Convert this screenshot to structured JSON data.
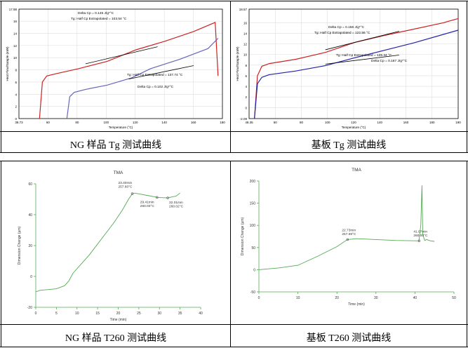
{
  "captions": {
    "tl": "NG 样品 Tg 测试曲线",
    "tr": "基板 Tg 测试曲线",
    "bl": "NG 样品 T260 测试曲线",
    "br": "基板 T260 测试曲线"
  },
  "chart_data": [
    {
      "type": "line",
      "panel": "top-left",
      "xlabel": "Temperature (°C)",
      "ylabel": "Heat Flow/Sample (mW)",
      "xlim": [
        38.73,
        180
      ],
      "ylim": [
        0,
        17.98
      ],
      "yticks": [
        0,
        2,
        4,
        6,
        8,
        10,
        12,
        14,
        16,
        17.98
      ],
      "xticks": [
        "38.73",
        "60",
        "80",
        "100",
        "120",
        "140",
        "160",
        "180"
      ],
      "series": [
        {
          "color": "#cc2222",
          "x": [
            53,
            55,
            58,
            65,
            80,
            100,
            120,
            140,
            160,
            175,
            177
          ],
          "y": [
            0,
            6,
            7.0,
            7.4,
            8.2,
            9.4,
            11.3,
            12.7,
            14.3,
            15.8,
            7
          ]
        },
        {
          "color": "#6666bb",
          "x": [
            72,
            74,
            77,
            85,
            100,
            117,
            130,
            150,
            170,
            177
          ],
          "y": [
            0,
            3.6,
            4.3,
            4.8,
            5.5,
            6.7,
            8.2,
            9.7,
            11.5,
            13.2
          ]
        }
      ],
      "annotations": [
        {
          "text": "Delta Cp = 0.145 J/g*°C"
        },
        {
          "text": "Tg: Half Cp Extrapolated = 103.54 °C"
        },
        {
          "text": "Tg: Half Cp Extrapolated = 137.74 °C"
        },
        {
          "text": "Delta Cp = 0.102 J/g*°C"
        }
      ]
    },
    {
      "type": "line",
      "panel": "top-right",
      "xlabel": "Temperature (°C)",
      "ylabel": "Heat Flow/Sample (mW)",
      "xlim": [
        48.35,
        190
      ],
      "ylim": [
        -2.08,
        18.57
      ],
      "yticks": [
        -2.08,
        0,
        2,
        4,
        6,
        8,
        10,
        12,
        14,
        16,
        18.57
      ],
      "xticks": [
        "48.35",
        "60",
        "80",
        "100",
        "120",
        "140",
        "160",
        "180",
        "190"
      ],
      "series": [
        {
          "color": "#cc2222",
          "x": [
            52,
            54,
            57,
            62,
            80,
            100,
            120,
            140,
            160,
            180,
            190
          ],
          "y": [
            -2,
            6,
            7.8,
            8.3,
            9.1,
            10.4,
            12.3,
            13.6,
            14.8,
            16.0,
            16.8
          ]
        },
        {
          "color": "#2222aa",
          "x": [
            52,
            54,
            57,
            62,
            80,
            100,
            120,
            140,
            160,
            180,
            190
          ],
          "y": [
            -2,
            4.5,
            5.7,
            6.2,
            6.9,
            7.9,
            9.4,
            10.8,
            12.2,
            13.8,
            14.6
          ]
        }
      ],
      "annotations": [
        {
          "text": "Delta Cp = 0.156 J/g*°C"
        },
        {
          "text": "Tg: Half Cp Extrapolated = 122.56 °C"
        },
        {
          "text": "Tg: Half Cp Extrapolated = 125.34 °C"
        },
        {
          "text": "Delta Cp = 0.167 J/g*°C"
        }
      ]
    },
    {
      "type": "line",
      "panel": "bottom-left",
      "title": "TMA",
      "xlabel": "Time (min)",
      "ylabel": "Dimension Change (µm)",
      "xlim": [
        0,
        40
      ],
      "ylim": [
        -20,
        60
      ],
      "yticks": [
        -20,
        0,
        20,
        40,
        60
      ],
      "xticks": [
        0,
        5,
        10,
        15,
        20,
        25,
        30,
        35,
        40
      ],
      "series": [
        {
          "color": "#55aa55",
          "x": [
            0,
            1,
            3,
            5,
            7,
            8,
            9,
            11,
            13,
            15,
            17,
            19,
            21,
            22.5,
            23.4,
            24,
            25,
            27,
            29,
            29.4,
            31,
            32,
            33,
            34,
            35
          ],
          "y": [
            -10,
            -9,
            -8.5,
            -8,
            -6,
            -3,
            2,
            8,
            14,
            21,
            28,
            35,
            43,
            50,
            53.6,
            54,
            53.5,
            52.5,
            51.5,
            51.2,
            51,
            50.9,
            51.5,
            52,
            54
          ]
        }
      ],
      "annotations": [
        {
          "text": "23.40min",
          "text2": "257.60°C",
          "x": 23.4,
          "y": 53.6
        },
        {
          "text": "29.41min",
          "text2": "260.03°C",
          "x": 29.41,
          "y": 51.2
        },
        {
          "text": "32.01min",
          "text2": "260.02°C",
          "x": 32.01,
          "y": 50.9
        }
      ]
    },
    {
      "type": "line",
      "panel": "bottom-right",
      "title": "TMA",
      "xlabel": "Time (min)",
      "ylabel": "Dimension Change (µm)",
      "xlim": [
        0,
        50
      ],
      "ylim": [
        -50,
        200
      ],
      "yticks": [
        -50,
        0,
        50,
        100,
        150,
        200
      ],
      "xticks": [
        0,
        10,
        20,
        30,
        40,
        50
      ],
      "series": [
        {
          "color": "#55aa55",
          "x": [
            0,
            5,
            10,
            15,
            20,
            22.7,
            25,
            30,
            35,
            41,
            41.5,
            41.8,
            42,
            42.5,
            43,
            44,
            45
          ],
          "y": [
            0,
            4,
            10,
            30,
            52,
            68,
            70,
            68,
            66,
            65,
            100,
            190,
            80,
            66,
            68,
            65,
            64
          ]
        }
      ],
      "annotations": [
        {
          "text": "22.73min",
          "text2": "257.59°C",
          "x": 22.73,
          "y": 68
        },
        {
          "text": "41.07min",
          "text2": "260.00°C",
          "x": 41.07,
          "y": 65
        }
      ]
    }
  ]
}
